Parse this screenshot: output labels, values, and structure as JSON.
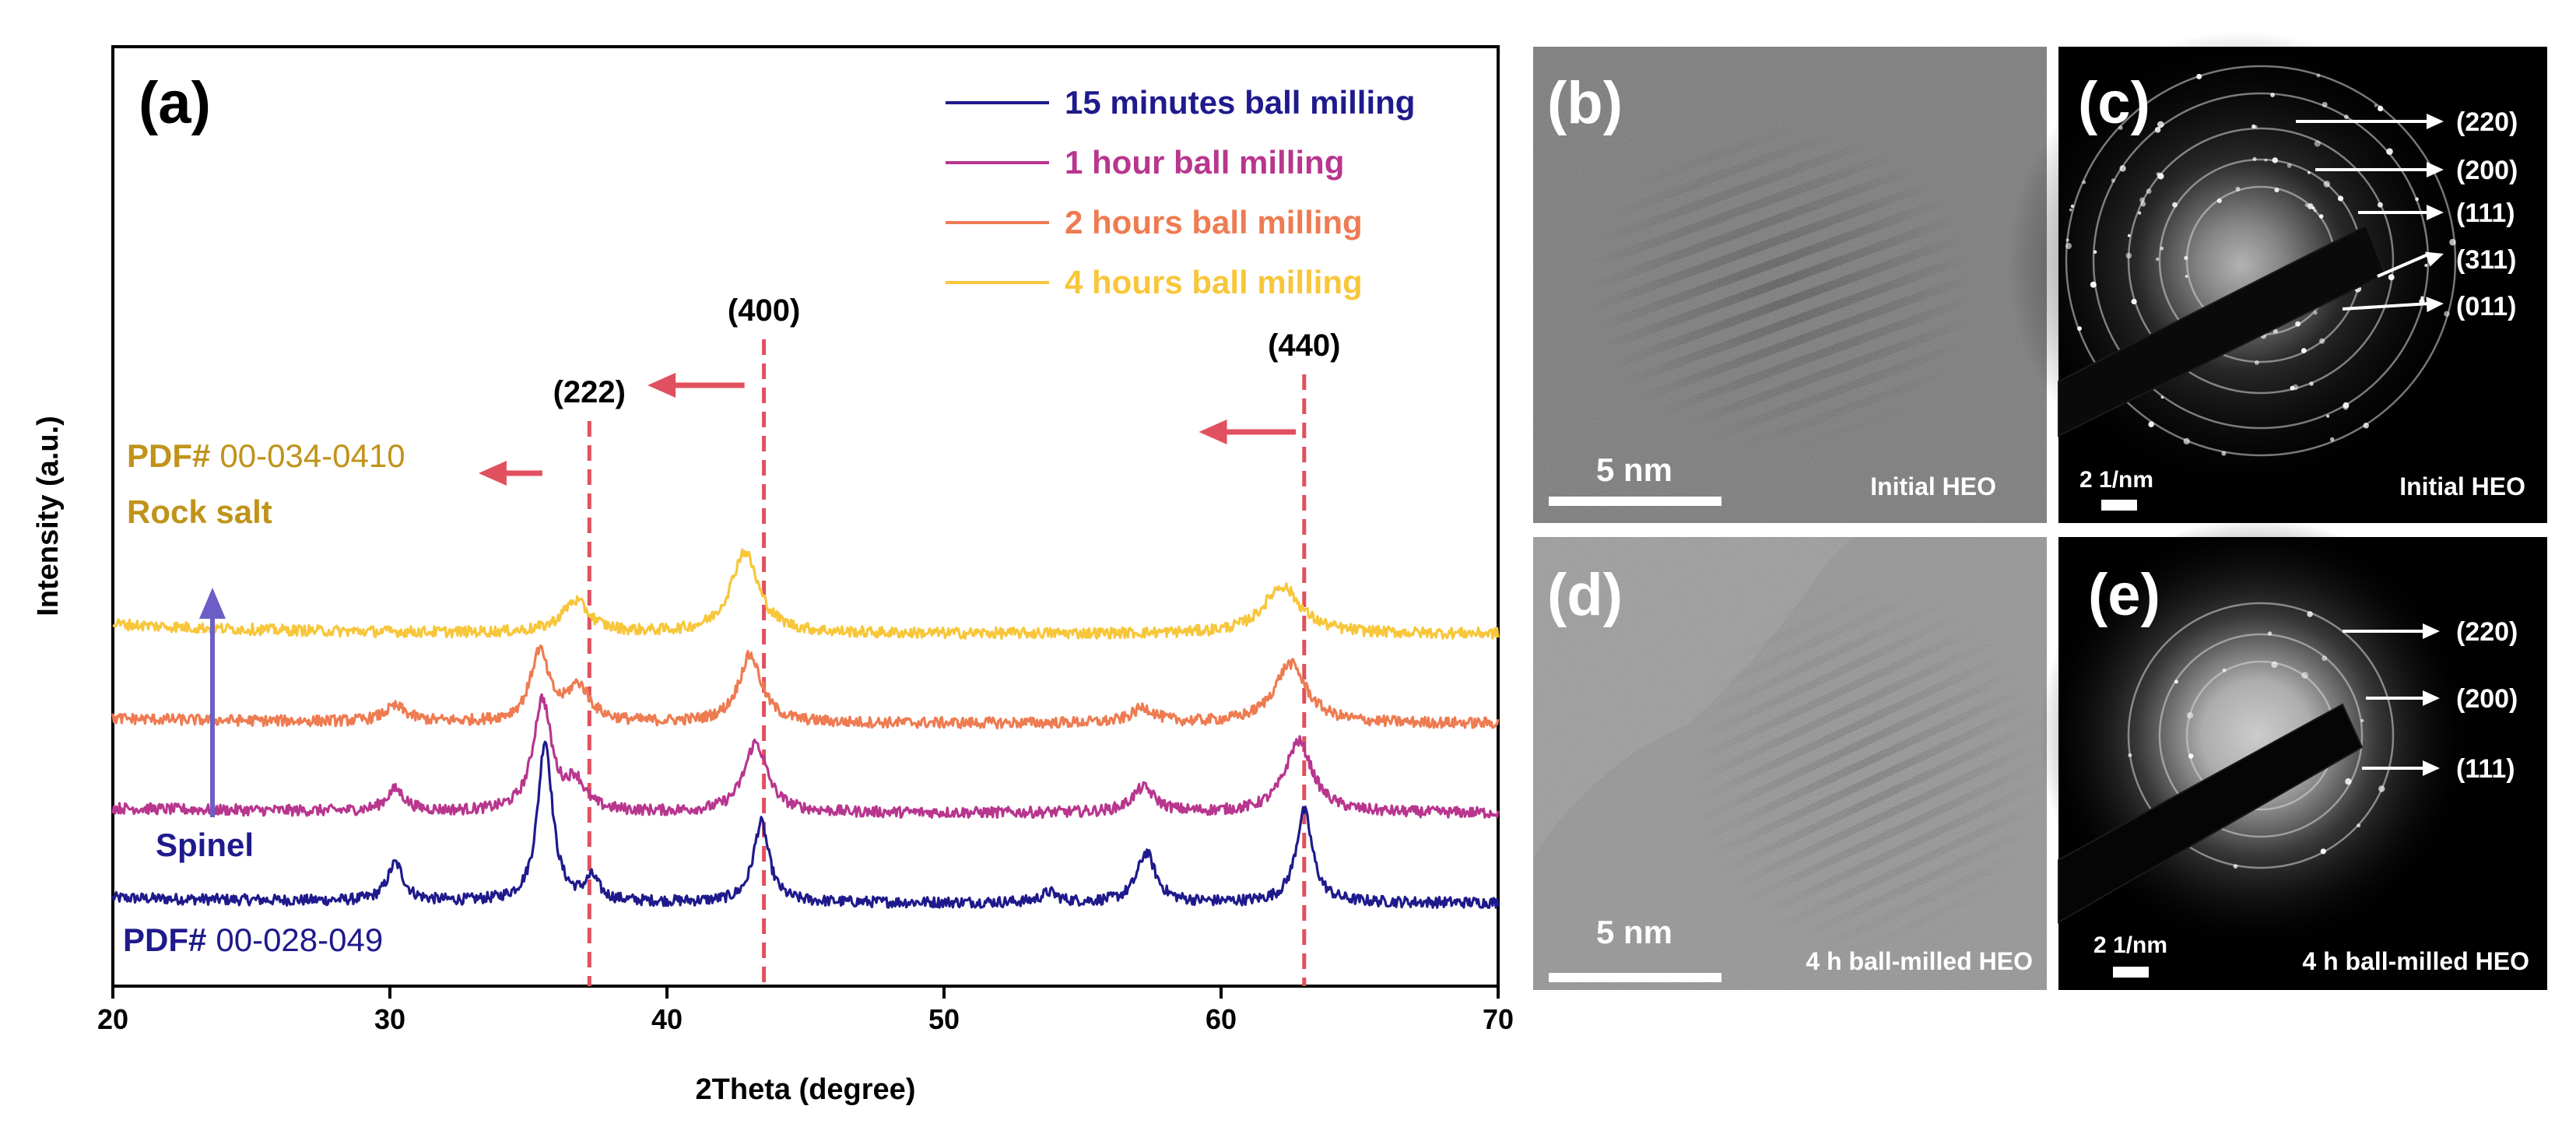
{
  "chart_data": {
    "type": "line",
    "panel_label": "(a)",
    "xlabel": "2Theta (degree)",
    "ylabel": "Intensity (a.u.)",
    "xlim": [
      20,
      70
    ],
    "xticks": [
      20,
      30,
      40,
      50,
      60,
      70
    ],
    "series": [
      {
        "name": "15 minutes ball milling",
        "color": "#1f1a8c",
        "offset": 0.0,
        "peaks": [
          {
            "pos": 30.2,
            "height": 0.38,
            "width": 0.35
          },
          {
            "pos": 35.6,
            "height": 1.62,
            "width": 0.32
          },
          {
            "pos": 37.3,
            "height": 0.22,
            "width": 0.3
          },
          {
            "pos": 43.4,
            "height": 0.8,
            "width": 0.34
          },
          {
            "pos": 53.8,
            "height": 0.1,
            "width": 0.35
          },
          {
            "pos": 57.3,
            "height": 0.5,
            "width": 0.4
          },
          {
            "pos": 63.0,
            "height": 0.92,
            "width": 0.36
          }
        ]
      },
      {
        "name": "1 hour ball milling",
        "color": "#b8368e",
        "offset": 0.9,
        "peaks": [
          {
            "pos": 30.2,
            "height": 0.22,
            "width": 0.4
          },
          {
            "pos": 35.5,
            "height": 1.12,
            "width": 0.4
          },
          {
            "pos": 36.7,
            "height": 0.28,
            "width": 0.4
          },
          {
            "pos": 43.2,
            "height": 0.7,
            "width": 0.5
          },
          {
            "pos": 57.2,
            "height": 0.25,
            "width": 0.5
          },
          {
            "pos": 62.8,
            "height": 0.72,
            "width": 0.6
          }
        ]
      },
      {
        "name": "2 hours ball milling",
        "color": "#ee7b51",
        "offset": 1.8,
        "peaks": [
          {
            "pos": 30.2,
            "height": 0.15,
            "width": 0.5
          },
          {
            "pos": 35.4,
            "height": 0.7,
            "width": 0.4
          },
          {
            "pos": 36.8,
            "height": 0.35,
            "width": 0.5
          },
          {
            "pos": 43.0,
            "height": 0.68,
            "width": 0.5
          },
          {
            "pos": 57.2,
            "height": 0.15,
            "width": 0.5
          },
          {
            "pos": 62.5,
            "height": 0.6,
            "width": 0.7
          }
        ]
      },
      {
        "name": "4 hours ball milling",
        "color": "#f8c63a",
        "offset": 2.7,
        "peaks": [
          {
            "pos": 36.7,
            "height": 0.32,
            "width": 0.6
          },
          {
            "pos": 42.8,
            "height": 0.82,
            "width": 0.6
          },
          {
            "pos": 62.2,
            "height": 0.48,
            "width": 0.8
          }
        ]
      }
    ],
    "reference_lines": [
      {
        "x": 37.2,
        "label": "(222)",
        "arrow_from": 35.5,
        "arrow_to": 33.2
      },
      {
        "x": 43.5,
        "label": "(400)",
        "arrow_from": 42.8,
        "arrow_to": 39.3
      },
      {
        "x": 63.0,
        "label": "(440)",
        "arrow_from": 62.7,
        "arrow_to": 59.2
      }
    ],
    "annotations": {
      "rock_pdf_prefix": "PDF#",
      "rock_pdf_number": "00-034-0410",
      "rock_phase": "Rock salt",
      "spinel_phase": "Spinel",
      "spinel_pdf_prefix": "PDF#",
      "spinel_pdf_number": "00-028-049"
    },
    "colors": {
      "rock_text": "#c0931a",
      "spinel_text": "#1f1a8c",
      "ref_line": "#e0505e",
      "arrow_up": "#6c5ec6"
    }
  },
  "images": [
    {
      "id": "b",
      "label": "(b)",
      "caption": "Initial HEO",
      "scale": "5 nm",
      "type": "hrtem"
    },
    {
      "id": "c",
      "label": "(c)",
      "caption": "Initial HEO",
      "scale": "2 1/nm",
      "type": "saed",
      "rings": [
        "(220)",
        "(200)",
        "(111)",
        "(311)",
        "(011)"
      ]
    },
    {
      "id": "d",
      "label": "(d)",
      "caption": "4 h ball-milled HEO",
      "scale": "5 nm",
      "type": "hrtem"
    },
    {
      "id": "e",
      "label": "(e)",
      "caption": "4 h ball-milled HEO",
      "scale": "2 1/nm",
      "type": "saed",
      "rings": [
        "(220)",
        "(200)",
        "(111)"
      ]
    }
  ]
}
